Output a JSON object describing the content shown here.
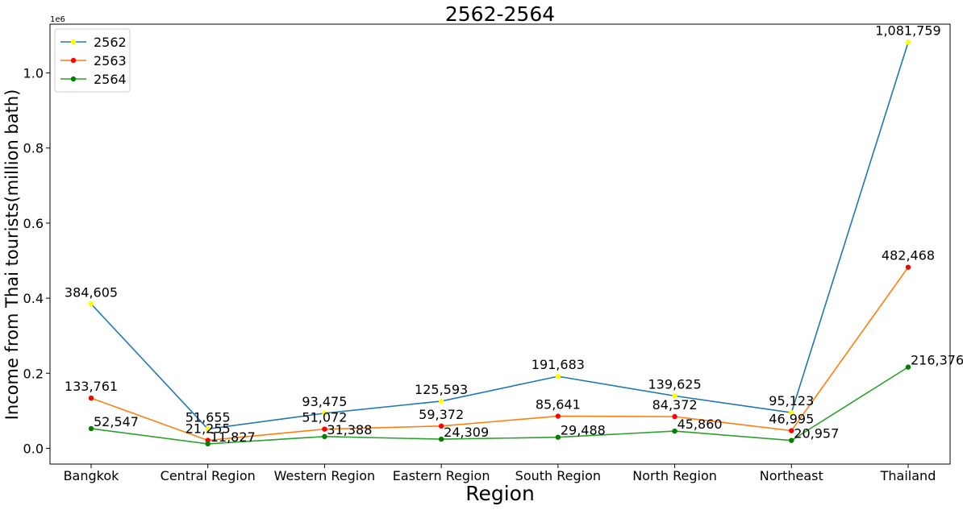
{
  "chart_data": {
    "type": "line",
    "title": "2562-2564",
    "xlabel": "Region",
    "ylabel": "Income from Thai tourists(million bath)",
    "y_scale_label": "1e6",
    "categories": [
      "Bangkok",
      "Central Region",
      "Western Region",
      "Eastern Region",
      "South Region",
      "North Region",
      "Northeast",
      "Thailand"
    ],
    "ylim": [
      -42000,
      1130000
    ],
    "yticks": [
      0,
      200000,
      400000,
      600000,
      800000,
      1000000
    ],
    "ytick_labels": [
      "0.0",
      "0.2",
      "0.4",
      "0.6",
      "0.8",
      "1.0"
    ],
    "grid": false,
    "legend_position": "top-left",
    "series": [
      {
        "name": "2562",
        "line_color": "#1f77b4",
        "marker_color": "#ffff00",
        "values": [
          384605,
          51655,
          93475,
          125593,
          191683,
          139625,
          95123,
          1081759
        ],
        "labels": [
          "384,605",
          "51,655",
          "93,475",
          "125,593",
          "191,683",
          "139,625",
          "95,123",
          "1,081,759"
        ]
      },
      {
        "name": "2563",
        "line_color": "#ff7f0e",
        "marker_color": "#ff0000",
        "values": [
          133761,
          21255,
          51072,
          59372,
          85641,
          84372,
          46995,
          482468
        ],
        "labels": [
          "133,761",
          "21,255",
          "51,072",
          "59,372",
          "85,641",
          "84,372",
          "46,995",
          "482,468"
        ]
      },
      {
        "name": "2564",
        "line_color": "#2ca02c",
        "marker_color": "#008000",
        "values": [
          52547,
          11827,
          31388,
          24309,
          29488,
          45860,
          20957,
          216376
        ],
        "labels": [
          "52,547",
          "11,827",
          "31,388",
          "24,309",
          "29,488",
          "45,860",
          "20,957",
          "216,376"
        ]
      }
    ]
  }
}
